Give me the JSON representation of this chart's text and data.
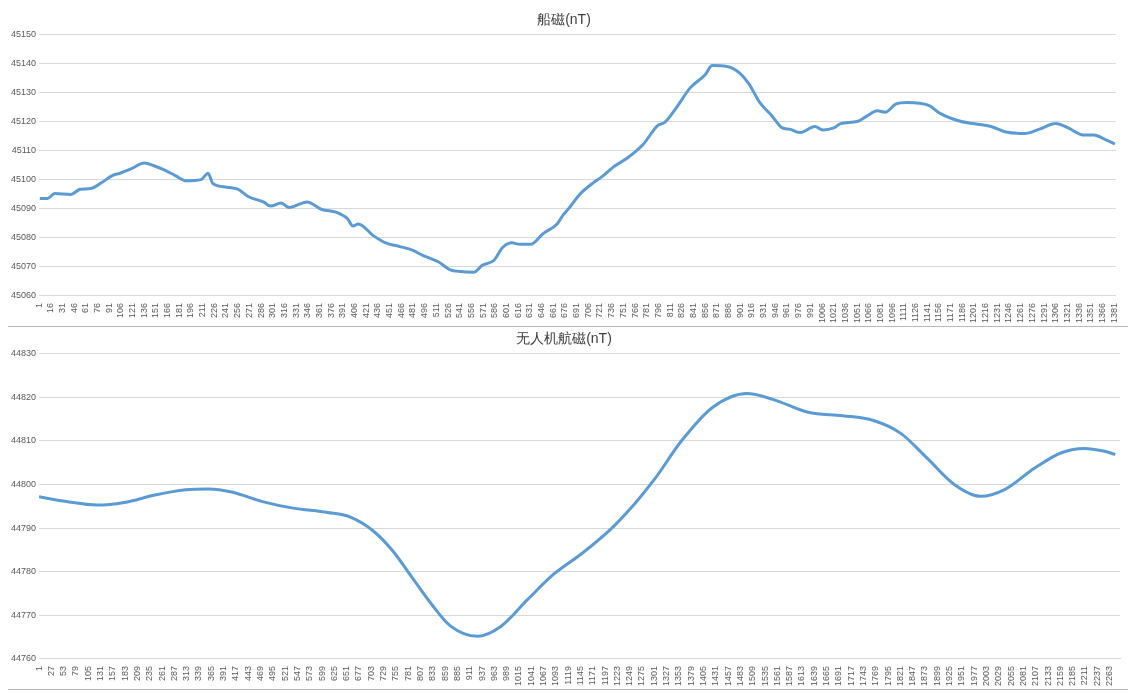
{
  "chart_data": [
    {
      "type": "line",
      "title": "船磁(nT)",
      "grid": "y",
      "legend": false,
      "marker": "none",
      "line_style": "solid",
      "series": [
        {
          "color": "#5b9bd5",
          "x": [
            2,
            12,
            21,
            42,
            54,
            67,
            81,
            95,
            105,
            119,
            136,
            150,
            161,
            176,
            190,
            209,
            218,
            224,
            242,
            256,
            270,
            289,
            298,
            312,
            322,
            345,
            364,
            383,
            397,
            404,
            411,
            430,
            446,
            463,
            481,
            495,
            514,
            528,
            542,
            559,
            570,
            585,
            596,
            608,
            618,
            632,
            648,
            666,
            674,
            681,
            696,
            710,
            724,
            738,
            757,
            776,
            795,
            804,
            818,
            837,
            856,
            865,
            884,
            900,
            912,
            926,
            941,
            955,
            964,
            978,
            997,
            1007,
            1021,
            1030,
            1051,
            1063,
            1077,
            1087,
            1101,
            1115,
            1143,
            1157,
            1181,
            1200,
            1223,
            1242,
            1266,
            1285,
            1306,
            1322,
            1341,
            1355,
            1369,
            1382
          ],
          "values": [
            45093.6,
            45093.6,
            45095.3,
            45095,
            45096.8,
            45097,
            45099,
            45101.5,
            45102.3,
            45103.8,
            45105.8,
            45104.7,
            45103.5,
            45101.5,
            45099.7,
            45100.1,
            45102.3,
            45098.8,
            45097.5,
            45096.8,
            45094.2,
            45092.4,
            45091,
            45092,
            45090.5,
            45092.4,
            45089.8,
            45088.8,
            45086.6,
            45084.1,
            45084.8,
            45080.8,
            45078.3,
            45077.1,
            45075.7,
            45073.8,
            45071.7,
            45069.1,
            45068.4,
            45068.2,
            45070.6,
            45072.3,
            45076.7,
            45078.3,
            45077.8,
            45077.8,
            45081.5,
            45084.8,
            45088,
            45090.2,
            45095.3,
            45098.5,
            45101.2,
            45104.4,
            45107.7,
            45112.1,
            45118.7,
            45119.8,
            45124.5,
            45131.8,
            45136.2,
            45139.4,
            45139.1,
            45136.9,
            45133.2,
            45126.7,
            45122.3,
            45117.9,
            45117.5,
            45116.3,
            45118.4,
            45117.2,
            45117.9,
            45119.4,
            45120.1,
            45121.9,
            45123.8,
            45123.3,
            45126.2,
            45126.7,
            45125.7,
            45123,
            45120.4,
            45119.4,
            45118.4,
            45116.5,
            45116,
            45117.5,
            45119.4,
            45117.9,
            45115.5,
            45115.5,
            45114,
            45112.4
          ]
        }
      ],
      "xlim": [
        1,
        1383
      ],
      "xticks": [
        1,
        16,
        31,
        46,
        61,
        76,
        91,
        106,
        121,
        136,
        151,
        166,
        181,
        196,
        211,
        226,
        241,
        256,
        271,
        286,
        301,
        316,
        331,
        346,
        361,
        376,
        391,
        406,
        421,
        436,
        451,
        466,
        481,
        496,
        511,
        526,
        541,
        556,
        571,
        586,
        601,
        616,
        631,
        646,
        661,
        676,
        691,
        706,
        721,
        736,
        751,
        766,
        781,
        796,
        811,
        826,
        841,
        856,
        871,
        886,
        901,
        916,
        931,
        946,
        961,
        976,
        991,
        1006,
        1021,
        1036,
        1051,
        1066,
        1081,
        1096,
        1111,
        1126,
        1141,
        1156,
        1171,
        1186,
        1201,
        1216,
        1231,
        1246,
        1261,
        1276,
        1291,
        1306,
        1321,
        1336,
        1351,
        1366,
        1381
      ],
      "ylim": [
        45060,
        45150
      ],
      "yticks": [
        45060,
        45070,
        45080,
        45090,
        45100,
        45110,
        45120,
        45130,
        45140,
        45150
      ]
    },
    {
      "type": "line",
      "title": "无人机航磁(nT)",
      "grid": "y",
      "legend": false,
      "marker": "none",
      "line_style": "solid",
      "series": [
        {
          "color": "#5b9bd5",
          "x": [
            1,
            59,
            124,
            181,
            246,
            311,
            359,
            408,
            473,
            538,
            611,
            660,
            708,
            749,
            789,
            830,
            870,
            927,
            976,
            1033,
            1089,
            1148,
            1213,
            1261,
            1302,
            1359,
            1424,
            1497,
            1553,
            1626,
            1699,
            1764,
            1821,
            1878,
            1934,
            1991,
            2040,
            2105,
            2161,
            2210,
            2250,
            2275
          ],
          "values": [
            44797.2,
            44796.1,
            44795.3,
            44795.9,
            44797.6,
            44798.8,
            44799,
            44798.3,
            44796.1,
            44794.6,
            44793.6,
            44792.5,
            44789.3,
            44784.7,
            44778.7,
            44772.6,
            44767.6,
            44765.2,
            44767.4,
            44773.6,
            44779.5,
            44784.2,
            44790.2,
            44795.8,
            44801.3,
            44810.1,
            44817.7,
            44820.9,
            44819.5,
            44816.6,
            44815.8,
            44814.7,
            44811.8,
            44806,
            44800.1,
            44797.3,
            44798.8,
            44803.8,
            44807.3,
            44808.3,
            44807.7,
            44806.9
          ]
        }
      ],
      "xlim": [
        1,
        2285
      ],
      "xticks": [
        1,
        27,
        53,
        79,
        105,
        131,
        157,
        183,
        209,
        235,
        261,
        287,
        313,
        339,
        365,
        391,
        417,
        443,
        469,
        495,
        521,
        547,
        573,
        599,
        625,
        651,
        677,
        703,
        729,
        755,
        781,
        807,
        833,
        859,
        885,
        911,
        937,
        963,
        989,
        1015,
        1041,
        1067,
        1093,
        1119,
        1145,
        1171,
        1197,
        1223,
        1249,
        1275,
        1301,
        1327,
        1353,
        1379,
        1405,
        1431,
        1457,
        1483,
        1509,
        1535,
        1561,
        1587,
        1613,
        1639,
        1665,
        1691,
        1717,
        1743,
        1769,
        1795,
        1821,
        1847,
        1873,
        1899,
        1925,
        1951,
        1977,
        2003,
        2029,
        2055,
        2081,
        2107,
        2133,
        2159,
        2185,
        2211,
        2237,
        2263
      ],
      "ylim": [
        44760,
        44830
      ],
      "yticks": [
        44760,
        44770,
        44780,
        44790,
        44800,
        44810,
        44820,
        44830
      ]
    }
  ]
}
